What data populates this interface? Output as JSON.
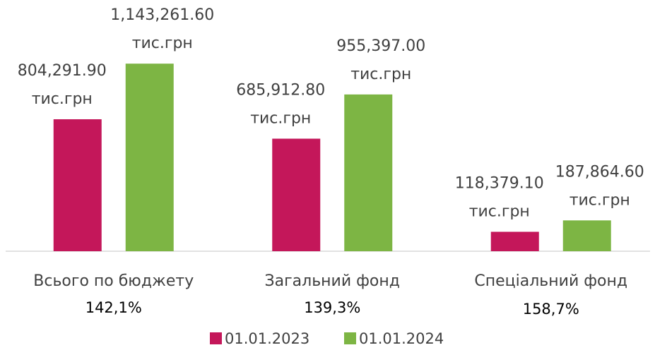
{
  "chart_data": {
    "type": "bar",
    "categories": [
      "Всього по бюджету",
      "Загальний фонд",
      "Спеціальний фонд"
    ],
    "annotations": [
      "142,1%",
      "139,3%",
      "158,7%"
    ],
    "unit_label": "тис.грн",
    "series": [
      {
        "name": "01.01.2023",
        "color": "#c4175a",
        "values": [
          804291.9,
          685912.8,
          118379.1
        ],
        "value_labels": [
          "804,291.90",
          "685,912.80",
          "118,379.10"
        ]
      },
      {
        "name": "01.01.2024",
        "color": "#7db544",
        "values": [
          1143261.6,
          955397.0,
          187864.6
        ],
        "value_labels": [
          "1,143,261.60",
          "955,397.00",
          "187,864.60"
        ]
      }
    ],
    "ylim": [
      0,
      1200000
    ]
  }
}
